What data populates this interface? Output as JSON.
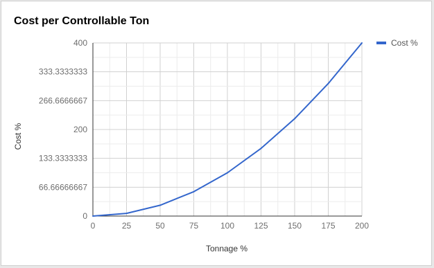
{
  "chart_data": {
    "type": "line",
    "title": "Cost per Controllable Ton",
    "xlabel": "Tonnage %",
    "ylabel": "Cost %",
    "x": [
      0,
      25,
      50,
      75,
      100,
      125,
      150,
      175,
      200
    ],
    "xlim": [
      0,
      200
    ],
    "ylim": [
      0,
      400
    ],
    "x_ticks": [
      "0",
      "25",
      "50",
      "75",
      "100",
      "125",
      "150",
      "175",
      "200"
    ],
    "y_ticks": [
      "0",
      "66.66666667",
      "133.3333333",
      "200",
      "266.6666667",
      "333.3333333",
      "400"
    ],
    "y_tick_values": [
      0,
      66.66666667,
      133.3333333,
      200,
      266.6666667,
      333.3333333,
      400
    ],
    "series": [
      {
        "name": "Cost %",
        "color": "#3366cc",
        "values": [
          0,
          6.25,
          25,
          56.25,
          100,
          156.25,
          225,
          306.25,
          400
        ]
      }
    ],
    "grid": true,
    "legend_position": "right"
  }
}
